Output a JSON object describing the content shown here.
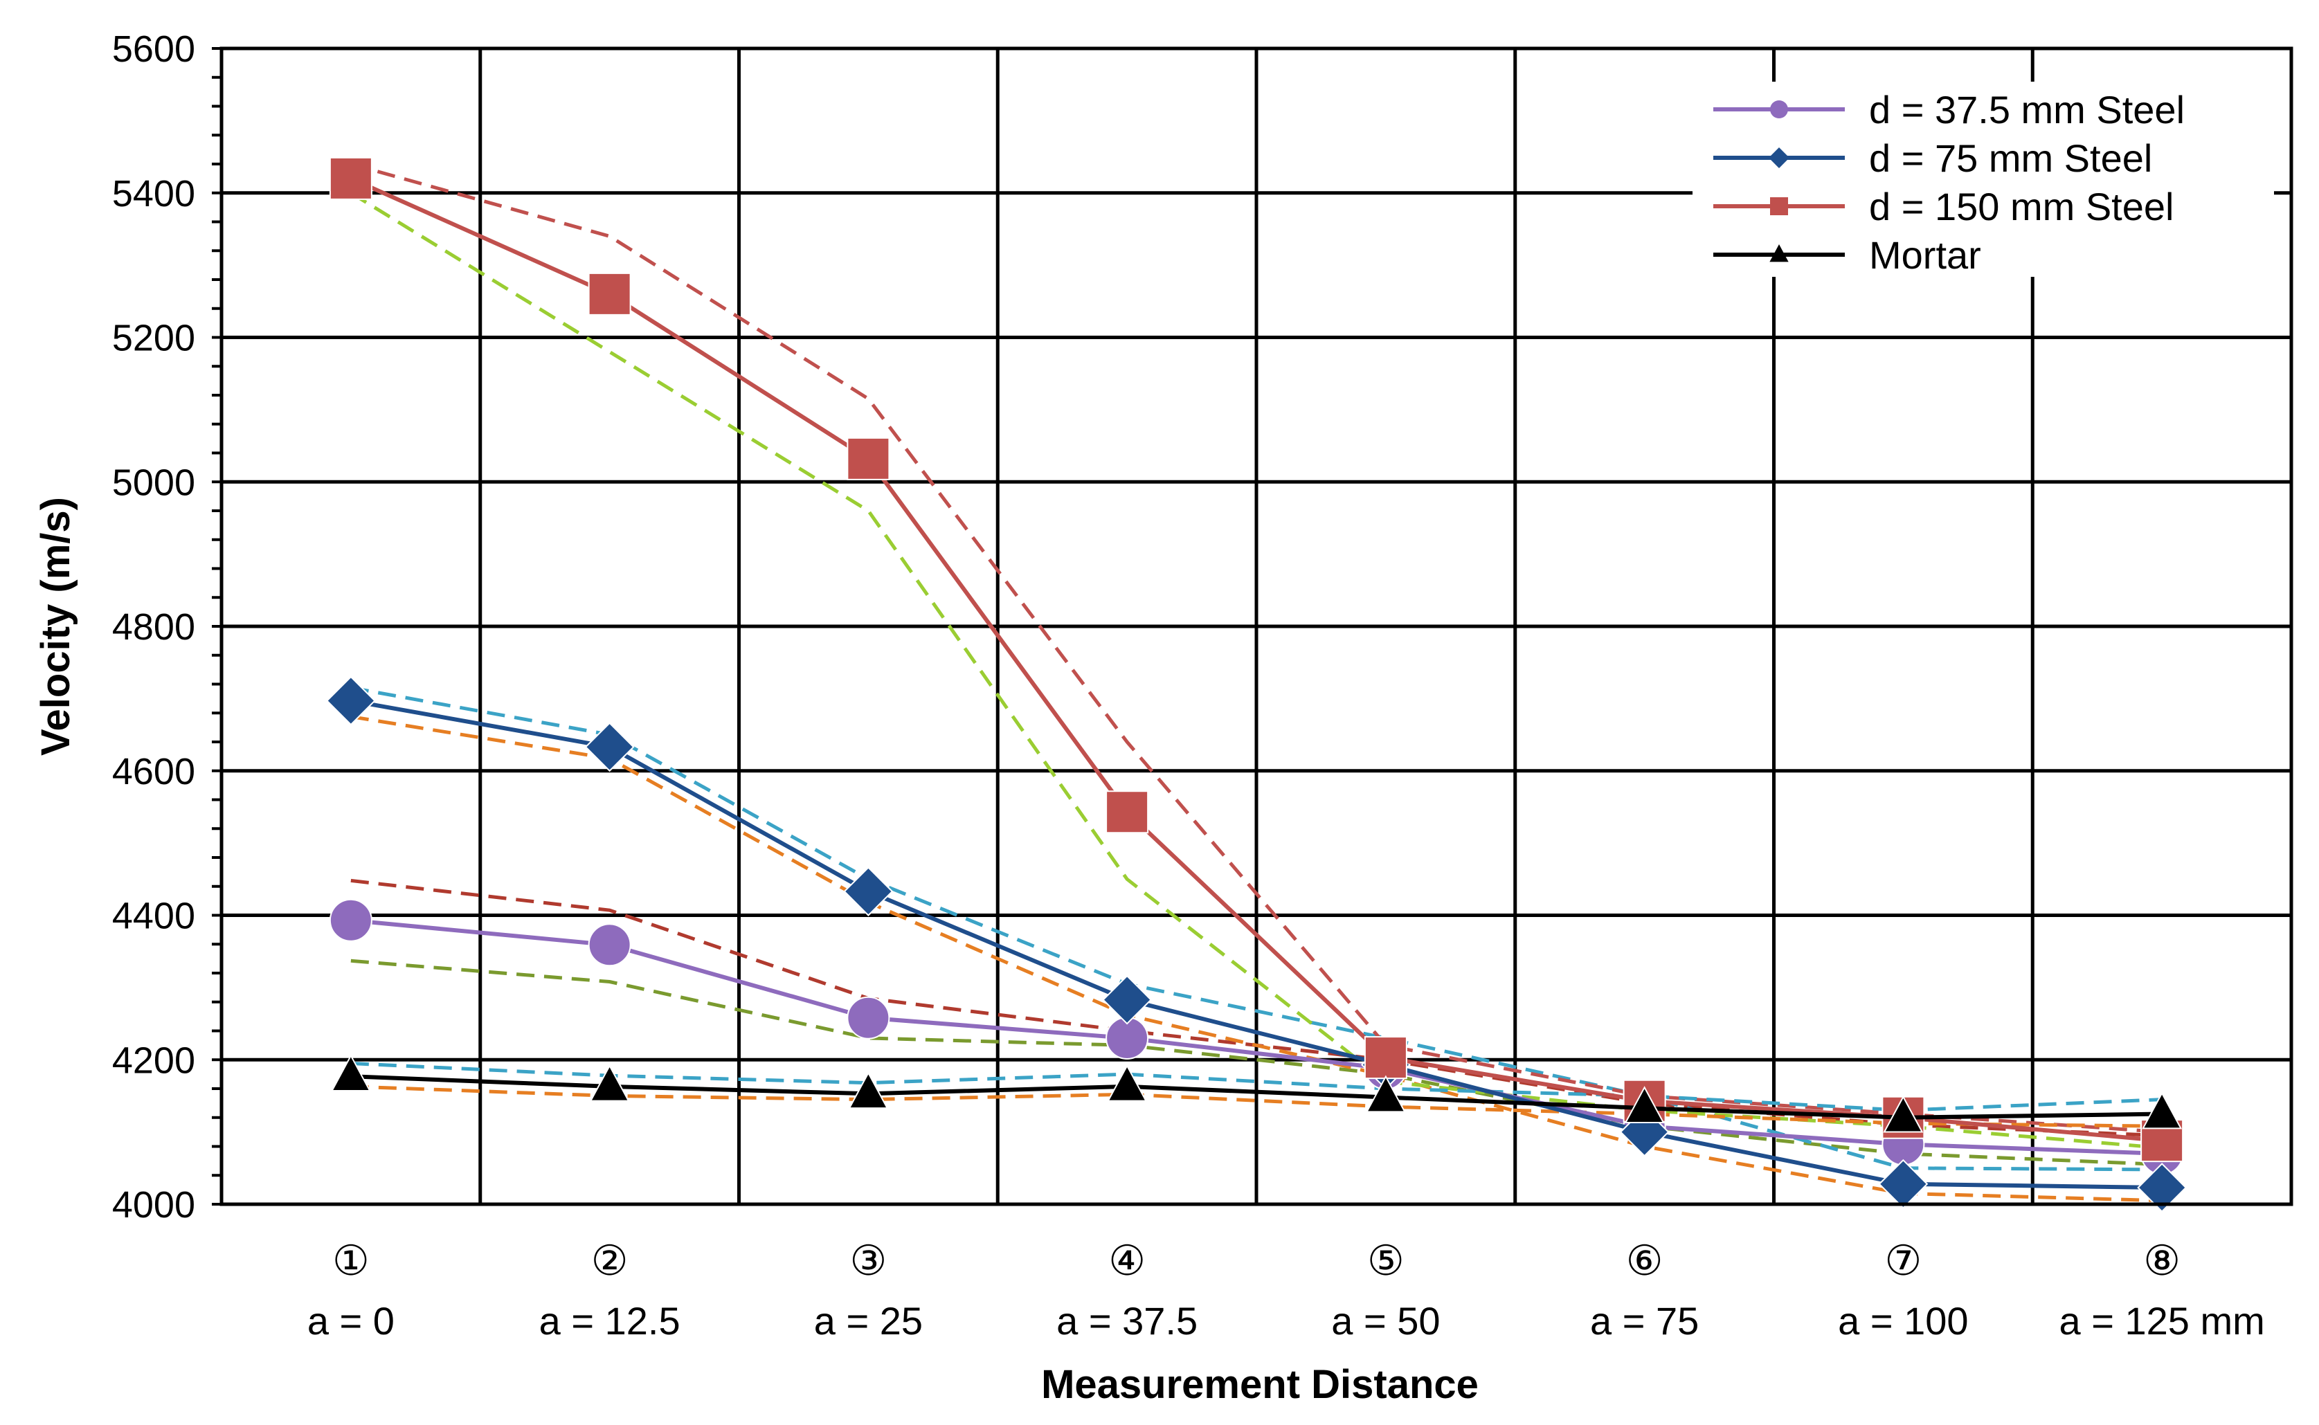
{
  "chart_data": {
    "type": "line",
    "title": "",
    "xlabel": "Measurement Distance",
    "ylabel": "Velocity (m/s)",
    "ylim": [
      4000,
      5600
    ],
    "yticks": [
      4000,
      4200,
      4400,
      4600,
      4800,
      5000,
      5200,
      5400,
      5600
    ],
    "grid": true,
    "legend_position": "top-right",
    "categories": [
      "①",
      "②",
      "③",
      "④",
      "⑤",
      "⑥",
      "⑦",
      "⑧"
    ],
    "category_labels": [
      "a = 0",
      "a = 12.5",
      "a = 25",
      "a = 37.5",
      "a = 50",
      "a = 75",
      "a = 100",
      "a = 125 mm"
    ],
    "series": [
      {
        "name": "d = 37.5 mm Steel",
        "color": "#8e6bbd",
        "marker": "circle",
        "values": [
          4393,
          4359,
          4258,
          4230,
          4188,
          4108,
          4083,
          4070
        ],
        "bounds": [
          {
            "color": "#b03a2e",
            "values": [
              4448,
              4407,
              4285,
              4240,
              4200,
              4140,
              4110,
              4095
            ]
          },
          {
            "color": "#7a9a2e",
            "values": [
              4337,
              4308,
              4230,
              4220,
              4180,
              4108,
              4070,
              4055
            ]
          }
        ]
      },
      {
        "name": "d = 75 mm Steel",
        "color": "#1f4e8c",
        "marker": "diamond",
        "values": [
          4697,
          4633,
          4433,
          4283,
          4193,
          4100,
          4028,
          4023
        ],
        "bounds": [
          {
            "color": "#3ba3c6",
            "values": [
              4715,
              4650,
              4450,
              4305,
              4230,
              4150,
              4050,
              4048
            ]
          },
          {
            "color": "#e67e22",
            "values": [
              4675,
              4617,
              4418,
              4262,
              4178,
              4080,
              4015,
              4005
            ]
          }
        ]
      },
      {
        "name": "d = 150 mm Steel",
        "color": "#c0504d",
        "marker": "square",
        "values": [
          5420,
          5260,
          5032,
          4543,
          4203,
          4143,
          4120,
          4088
        ],
        "bounds": [
          {
            "color": "#c0504d",
            "values": [
              5440,
              5340,
              5115,
              4640,
              4220,
              4150,
              4125,
              4100
            ]
          },
          {
            "color": "#9acd32",
            "values": [
              5400,
              5180,
              4960,
              4450,
              4170,
              4130,
              4108,
              4078
            ]
          }
        ]
      },
      {
        "name": "Mortar",
        "color": "#000000",
        "marker": "triangle",
        "values": [
          4177,
          4163,
          4153,
          4163,
          4148,
          4133,
          4120,
          4125
        ],
        "bounds": [
          {
            "color": "#3ba3c6",
            "values": [
              4195,
              4178,
              4168,
              4180,
              4160,
              4150,
              4130,
              4145
            ]
          },
          {
            "color": "#e67e22",
            "values": [
              4163,
              4150,
              4145,
              4152,
              4135,
              4125,
              4112,
              4108
            ]
          }
        ]
      }
    ]
  }
}
